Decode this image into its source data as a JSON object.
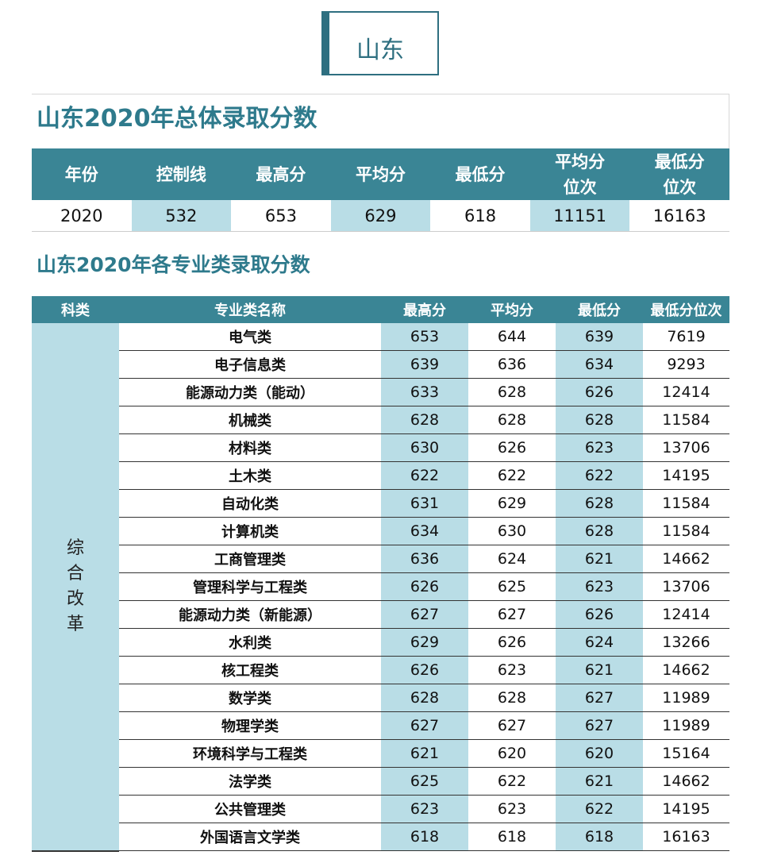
{
  "header": {
    "title": "山东"
  },
  "overall": {
    "title": "山东2020年总体录取分数",
    "columns": [
      [
        "年份"
      ],
      [
        "控制线"
      ],
      [
        "最高分"
      ],
      [
        "平均分"
      ],
      [
        "最低分"
      ],
      [
        "平均分",
        "位次"
      ],
      [
        "最低分",
        "位次"
      ]
    ],
    "row": [
      2020,
      532,
      653,
      629,
      618,
      11151,
      16163
    ]
  },
  "majors": {
    "title": "山东2020年各专业类录取分数",
    "columns": [
      "科类",
      "专业类名称",
      "最高分",
      "平均分",
      "最低分",
      "最低分位次"
    ],
    "category": "综合改革",
    "rows": [
      [
        "电气类",
        653,
        644,
        639,
        7619
      ],
      [
        "电子信息类",
        639,
        636,
        634,
        9293
      ],
      [
        "能源动力类（能动）",
        633,
        628,
        626,
        12414
      ],
      [
        "机械类",
        628,
        628,
        628,
        11584
      ],
      [
        "材料类",
        630,
        626,
        623,
        13706
      ],
      [
        "土木类",
        622,
        622,
        622,
        14195
      ],
      [
        "自动化类",
        631,
        629,
        628,
        11584
      ],
      [
        "计算机类",
        634,
        630,
        628,
        11584
      ],
      [
        "工商管理类",
        636,
        624,
        621,
        14662
      ],
      [
        "管理科学与工程类",
        626,
        625,
        623,
        13706
      ],
      [
        "能源动力类（新能源）",
        627,
        627,
        626,
        12414
      ],
      [
        "水利类",
        629,
        626,
        624,
        13266
      ],
      [
        "核工程类",
        626,
        623,
        621,
        14662
      ],
      [
        "数学类",
        628,
        628,
        627,
        11989
      ],
      [
        "物理学类",
        627,
        627,
        627,
        11989
      ],
      [
        "环境科学与工程类",
        621,
        620,
        620,
        15164
      ],
      [
        "法学类",
        625,
        622,
        621,
        14662
      ],
      [
        "公共管理类",
        623,
        623,
        622,
        14195
      ],
      [
        "外国语言文学类",
        618,
        618,
        618,
        16163
      ]
    ]
  }
}
